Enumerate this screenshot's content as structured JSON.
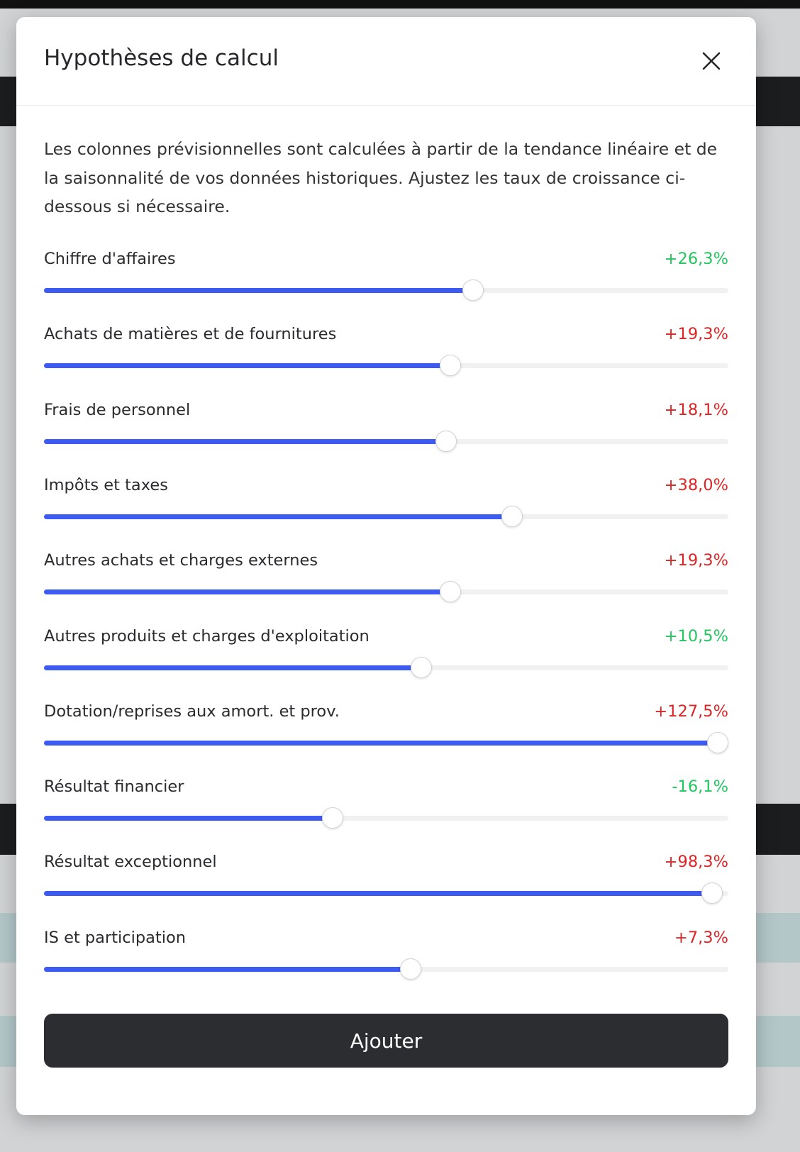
{
  "modal": {
    "title": "Hypothèses de calcul",
    "description": "Les colonnes prévisionnelles sont calculées à partir de la tendance linéaire et de la saisonnalité de vos données historiques. Ajustez les taux de croissance ci-dessous si nécessaire.",
    "slider_range": [
      -100,
      100
    ],
    "track_color": "#3d5af1",
    "sliders": [
      {
        "name": "Chiffre d'affaires",
        "value": 26.3,
        "value_label": "+26,3%",
        "color": "#22c55e"
      },
      {
        "name": "Achats de matières et de fournitures",
        "value": 19.3,
        "value_label": "+19,3%",
        "color": "#dc2626"
      },
      {
        "name": "Frais de personnel",
        "value": 18.1,
        "value_label": "+18,1%",
        "color": "#dc2626"
      },
      {
        "name": "Impôts et taxes",
        "value": 38.0,
        "value_label": "+38,0%",
        "color": "#dc2626"
      },
      {
        "name": "Autres achats et charges externes",
        "value": 19.3,
        "value_label": "+19,3%",
        "color": "#dc2626"
      },
      {
        "name": "Autres produits et charges d'exploitation",
        "value": 10.5,
        "value_label": "+10,5%",
        "color": "#22c55e"
      },
      {
        "name": "Dotation/reprises aux amort. et prov.",
        "value": 127.5,
        "value_label": "+127,5%",
        "color": "#dc2626"
      },
      {
        "name": "Résultat financier",
        "value": -16.1,
        "value_label": "-16,1%",
        "color": "#22c55e"
      },
      {
        "name": "Résultat exceptionnel",
        "value": 98.3,
        "value_label": "+98,3%",
        "color": "#dc2626"
      },
      {
        "name": "IS et participation",
        "value": 7.3,
        "value_label": "+7,3%",
        "color": "#dc2626"
      }
    ],
    "button": "Ajouter"
  }
}
